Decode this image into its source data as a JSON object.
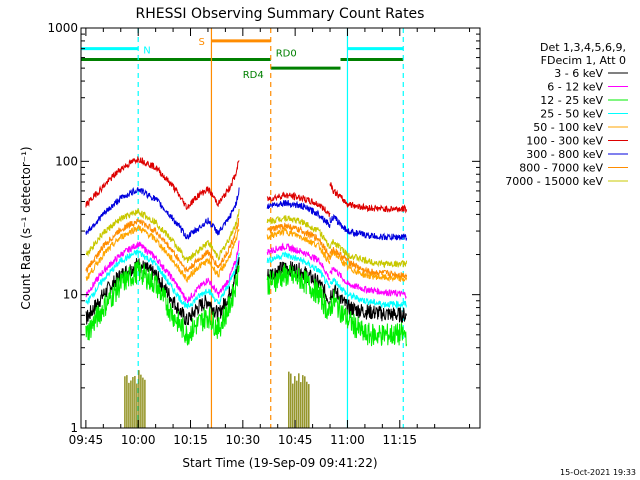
{
  "chart_data": {
    "type": "line",
    "title": "RHESSI Observing Summary Count Rates",
    "xlabel": "Start Time (19-Sep-09 09:41:22)",
    "ylabel": "Count Rate (s⁻¹ detector⁻¹)",
    "yscale": "log",
    "ylim": [
      1,
      1000
    ],
    "xlim_minutes": [
      -16.4,
      98
    ],
    "x_ticks": [
      "09:45",
      "10:00",
      "10:15",
      "10:30",
      "10:45",
      "11:00",
      "11:15"
    ],
    "x_tick_minutes": [
      -15,
      0,
      15,
      30,
      45,
      60,
      75
    ],
    "y_ticks": [
      "1",
      "10",
      "100",
      "1000"
    ],
    "y_tick_values": [
      1,
      10,
      100,
      1000
    ],
    "legend_header": [
      "Det 1,3,4,5,6,9,",
      "FDecim 1, Att 0"
    ],
    "legend_position": "right",
    "timestamp": "15-Oct-2021 19:33",
    "series": [
      {
        "name": "3 - 6 keV",
        "color": "#000000",
        "segments": [
          {
            "x": [
              -15,
              -10,
              -5,
              0,
              5,
              10,
              14,
              17,
              20,
              23,
              26,
              28,
              29
            ],
            "y": [
              6.5,
              10,
              14,
              17,
              14,
              9,
              6.3,
              8,
              9,
              7,
              10,
              14,
              19
            ]
          },
          {
            "x": [
              37,
              42,
              47,
              52,
              55
            ],
            "y": [
              14,
              16,
              15,
              12,
              9
            ]
          },
          {
            "x": [
              55,
              56,
              60,
              65,
              70,
              77
            ],
            "y": [
              10,
              11,
              8,
              7.5,
              7.2,
              7
            ]
          }
        ]
      },
      {
        "name": "6 - 12 keV",
        "color": "#ff00ff",
        "segments": [
          {
            "x": [
              -15,
              -10,
              -5,
              0,
              5,
              10,
              14,
              17,
              20,
              23,
              26,
              28,
              29
            ],
            "y": [
              10,
              15,
              20,
              24,
              19,
              13,
              9,
              11,
              13,
              10,
              13,
              18,
              25
            ]
          },
          {
            "x": [
              37,
              42,
              47,
              52,
              55
            ],
            "y": [
              21,
              23,
              21,
              18,
              13
            ]
          },
          {
            "x": [
              55,
              56,
              60,
              65,
              70,
              77
            ],
            "y": [
              14,
              16,
              12,
              11,
              10.5,
              10
            ]
          }
        ]
      },
      {
        "name": "12 - 25 keV",
        "color": "#00ee00",
        "segments": [
          {
            "x": [
              -15,
              -10,
              -5,
              0,
              5,
              10,
              14,
              17,
              20,
              23,
              26,
              28,
              29
            ],
            "y": [
              5,
              8,
              12,
              15,
              12,
              7,
              5,
              6,
              7,
              5.5,
              8,
              12,
              18
            ]
          },
          {
            "x": [
              37,
              42,
              47,
              52,
              55
            ],
            "y": [
              12,
              14,
              13,
              10,
              7
            ]
          },
          {
            "x": [
              55,
              56,
              60,
              65,
              70,
              77
            ],
            "y": [
              8,
              9,
              6.5,
              5,
              5,
              5
            ]
          }
        ]
      },
      {
        "name": "25 - 50 keV",
        "color": "#00ffff",
        "segments": [
          {
            "x": [
              -15,
              -10,
              -5,
              0,
              5,
              10,
              14,
              17,
              20,
              23,
              26,
              28,
              29
            ],
            "y": [
              8.5,
              13,
              18,
              21,
              17,
              11,
              8,
              9.5,
              11,
              8.5,
              12,
              16,
              22
            ]
          },
          {
            "x": [
              37,
              42,
              47,
              52,
              55
            ],
            "y": [
              18,
              20,
              18,
              15,
              11
            ]
          },
          {
            "x": [
              55,
              56,
              60,
              65,
              70,
              77
            ],
            "y": [
              12,
              13,
              10,
              9,
              8.5,
              8.5
            ]
          }
        ]
      },
      {
        "name": "50 - 100 keV",
        "color": "#ffa500",
        "segments": [
          {
            "x": [
              -15,
              -10,
              -5,
              0,
              5,
              10,
              14,
              17,
              20,
              23,
              26,
              28,
              29
            ],
            "y": [
              13,
              20,
              27,
              32,
              26,
              18,
              13,
              16,
              18,
              14,
              19,
              25,
              33
            ]
          },
          {
            "x": [
              37,
              42,
              47,
              52,
              55
            ],
            "y": [
              27,
              30,
              27,
              23,
              17
            ]
          },
          {
            "x": [
              55,
              56,
              60,
              65,
              70,
              77
            ],
            "y": [
              19,
              21,
              16,
              14,
              13.5,
              13
            ]
          }
        ]
      },
      {
        "name": "100 - 300 keV",
        "color": "#dd0000",
        "segments": [
          {
            "x": [
              -15,
              -10,
              -5,
              0,
              5,
              10,
              14,
              17,
              20,
              23,
              26,
              28,
              29
            ],
            "y": [
              47,
              65,
              88,
              105,
              90,
              65,
              45,
              55,
              62,
              48,
              62,
              80,
              105
            ]
          },
          {
            "x": [
              37,
              42,
              47,
              52,
              55
            ],
            "y": [
              52,
              56,
              53,
              47,
              40
            ]
          },
          {
            "x": [
              55,
              56,
              60,
              65,
              70,
              77
            ],
            "y": [
              70,
              60,
              48,
              45,
              44,
              44
            ]
          }
        ]
      },
      {
        "name": "300 - 800 keV",
        "color": "#0000dd",
        "segments": [
          {
            "x": [
              -15,
              -10,
              -5,
              0,
              5,
              10,
              14,
              17,
              20,
              23,
              26,
              28,
              29
            ],
            "y": [
              29,
              40,
              53,
              62,
              52,
              37,
              27,
              31,
              36,
              29,
              37,
              48,
              62
            ]
          },
          {
            "x": [
              37,
              42,
              47,
              52,
              55
            ],
            "y": [
              46,
              49,
              46,
              40,
              33
            ]
          },
          {
            "x": [
              55,
              56,
              60,
              65,
              70,
              77
            ],
            "y": [
              36,
              38,
              30,
              28,
              27,
              27
            ]
          }
        ]
      },
      {
        "name": "800 - 7000 keV",
        "color": "#ff8c00",
        "segments": [
          {
            "x": [
              -15,
              -10,
              -5,
              0,
              5,
              10,
              14,
              17,
              20,
              23,
              26,
              28,
              29
            ],
            "y": [
              15,
              23,
              31,
              36,
              30,
              21,
              15,
              18,
              21,
              16,
              22,
              29,
              37
            ]
          },
          {
            "x": [
              37,
              42,
              47,
              52,
              55
            ],
            "y": [
              30,
              33,
              30,
              26,
              19
            ]
          },
          {
            "x": [
              55,
              56,
              60,
              65,
              70,
              77
            ],
            "y": [
              20,
              22,
              18,
              15,
              14.5,
              14
            ]
          }
        ]
      },
      {
        "name": "7000 - 15000 keV",
        "color": "#c8c800",
        "segments": [
          {
            "x": [
              -15,
              -10,
              -5,
              0,
              5,
              10,
              14,
              17,
              20,
              23,
              26,
              28,
              29
            ],
            "y": [
              20,
              29,
              37,
              42,
              35,
              25,
              18,
              21,
              25,
              19,
              26,
              34,
              44
            ]
          },
          {
            "x": [
              37,
              42,
              47,
              52,
              55
            ],
            "y": [
              35,
              38,
              35,
              30,
              22
            ]
          },
          {
            "x": [
              55,
              56,
              60,
              65,
              70,
              77
            ],
            "y": [
              23,
              25,
              20,
              18,
              17,
              17
            ]
          }
        ]
      }
    ],
    "flag_bars": [
      {
        "label": "N",
        "color": "#00ffff",
        "y": 700,
        "x_ranges": [
          [
            -16.4,
            0
          ],
          [
            60,
            76
          ]
        ]
      },
      {
        "label": "S",
        "color": "#ff8c00",
        "y": 800,
        "x_ranges": [
          [
            21,
            38
          ]
        ]
      },
      {
        "label": "RD0",
        "color": "#008000",
        "y": 580,
        "x_ranges": [
          [
            -16.4,
            38
          ],
          [
            58,
            76
          ]
        ]
      },
      {
        "label": "RD4",
        "color": "#008000",
        "y": 500,
        "x_ranges": [
          [
            38,
            58
          ]
        ]
      }
    ],
    "vertical_markers": [
      {
        "x": 0,
        "color": "#00ffff",
        "style": "dashed"
      },
      {
        "x": 21,
        "color": "#ff8c00",
        "style": "solid"
      },
      {
        "x": 38,
        "color": "#ff8c00",
        "style": "dashed"
      },
      {
        "x": 60,
        "color": "#00ffff",
        "style": "solid"
      },
      {
        "x": 76,
        "color": "#00ffff",
        "style": "dashed"
      }
    ],
    "attenuator_blocks": {
      "color": "#808000",
      "ranges": [
        [
          -4,
          2
        ],
        [
          43,
          49
        ]
      ],
      "ymin": 1,
      "ymax": 2.8
    }
  }
}
